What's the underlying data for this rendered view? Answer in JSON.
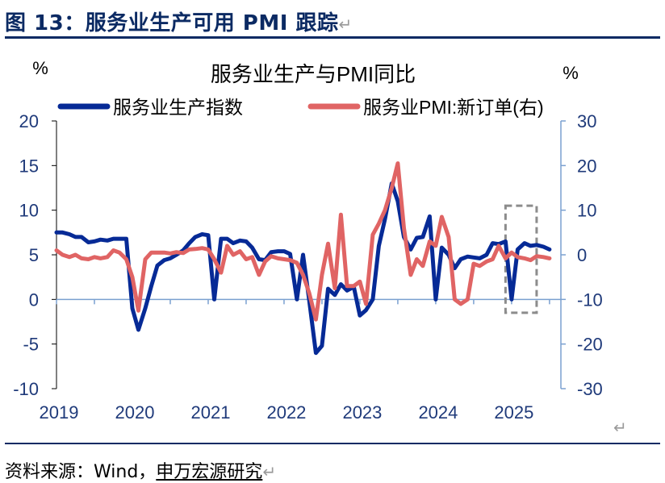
{
  "header": {
    "title": "图 13：服务业生产可用 PMI 跟踪",
    "return_mark": "↵"
  },
  "footer": {
    "source_prefix": "资料来源：Wind，",
    "source_brand": "申万宏源研究",
    "return_mark": "↵",
    "corner_mark": "↵"
  },
  "colors": {
    "series1": "#062a96",
    "series2": "#e06464",
    "axis_right": "#7aa0d0",
    "highlight_box": "#8c8c8c"
  },
  "chart_data": {
    "type": "line",
    "title": "服务业生产与PMI同比",
    "y_left_label": "%",
    "y_right_label": "%",
    "y_left_lim": [
      -10,
      20
    ],
    "y_right_lim": [
      -30,
      30
    ],
    "y_left_ticks": [
      "20",
      "15",
      "10",
      "5",
      "0",
      "-5",
      "-10"
    ],
    "y_right_ticks": [
      "30",
      "20",
      "10",
      "0",
      "-10",
      "-20",
      "-30"
    ],
    "x_tick_labels": [
      "2019",
      "2020",
      "2021",
      "2022",
      "2023",
      "2024",
      "2025"
    ],
    "grid": false,
    "legend_position": "top",
    "highlight": {
      "x_from": 2024.92,
      "x_to": 2025.33,
      "y_left_from": -1.5,
      "y_left_to": 10.5
    },
    "series": [
      {
        "name": "服务业生产指数",
        "axis": "left",
        "points": [
          [
            2019.0,
            7.5
          ],
          [
            2019.08,
            7.5
          ],
          [
            2019.17,
            7.3
          ],
          [
            2019.25,
            7.0
          ],
          [
            2019.33,
            7.0
          ],
          [
            2019.42,
            6.4
          ],
          [
            2019.5,
            6.5
          ],
          [
            2019.58,
            6.7
          ],
          [
            2019.67,
            6.6
          ],
          [
            2019.75,
            6.8
          ],
          [
            2019.83,
            6.8
          ],
          [
            2019.92,
            6.8
          ],
          [
            2020.0,
            -1.0
          ],
          [
            2020.08,
            -3.4
          ],
          [
            2020.17,
            -1.0
          ],
          [
            2020.25,
            1.5
          ],
          [
            2020.33,
            3.8
          ],
          [
            2020.42,
            4.4
          ],
          [
            2020.5,
            4.6
          ],
          [
            2020.58,
            5.0
          ],
          [
            2020.67,
            5.5
          ],
          [
            2020.75,
            6.3
          ],
          [
            2020.83,
            7.0
          ],
          [
            2020.92,
            7.3
          ],
          [
            2021.0,
            7.2
          ],
          [
            2021.08,
            0.0
          ],
          [
            2021.17,
            6.8
          ],
          [
            2021.25,
            6.8
          ],
          [
            2021.33,
            6.3
          ],
          [
            2021.42,
            6.6
          ],
          [
            2021.5,
            6.5
          ],
          [
            2021.58,
            5.8
          ],
          [
            2021.67,
            4.5
          ],
          [
            2021.75,
            4.4
          ],
          [
            2021.83,
            5.3
          ],
          [
            2021.92,
            5.4
          ],
          [
            2022.0,
            5.4
          ],
          [
            2022.08,
            5.1
          ],
          [
            2022.17,
            0.0
          ],
          [
            2022.25,
            5.0
          ],
          [
            2022.33,
            0.0
          ],
          [
            2022.42,
            -6.0
          ],
          [
            2022.5,
            -5.2
          ],
          [
            2022.58,
            1.2
          ],
          [
            2022.67,
            0.5
          ],
          [
            2022.75,
            1.7
          ],
          [
            2022.83,
            1.0
          ],
          [
            2022.92,
            1.4
          ],
          [
            2023.0,
            -1.8
          ],
          [
            2023.08,
            -1.2
          ],
          [
            2023.17,
            0.0
          ],
          [
            2023.25,
            6.0
          ],
          [
            2023.33,
            9.0
          ],
          [
            2023.42,
            13.0
          ],
          [
            2023.5,
            11.0
          ],
          [
            2023.58,
            7.0
          ],
          [
            2023.67,
            5.6
          ],
          [
            2023.75,
            6.9
          ],
          [
            2023.83,
            7.0
          ],
          [
            2023.92,
            9.3
          ],
          [
            2024.0,
            0.0
          ],
          [
            2024.08,
            5.8
          ],
          [
            2024.17,
            5.0
          ],
          [
            2024.25,
            3.5
          ],
          [
            2024.33,
            4.5
          ],
          [
            2024.42,
            4.8
          ],
          [
            2024.5,
            4.7
          ],
          [
            2024.58,
            4.6
          ],
          [
            2024.67,
            5.0
          ],
          [
            2024.75,
            6.3
          ],
          [
            2024.83,
            6.2
          ],
          [
            2024.92,
            6.5
          ],
          [
            2025.0,
            0.0
          ],
          [
            2025.08,
            5.6
          ],
          [
            2025.17,
            6.3
          ],
          [
            2025.25,
            6.0
          ],
          [
            2025.33,
            6.1
          ],
          [
            2025.42,
            5.9
          ],
          [
            2025.5,
            5.6
          ]
        ]
      },
      {
        "name": "服务业PMI:新订单(右)",
        "axis": "right",
        "points": [
          [
            2019.0,
            1.0
          ],
          [
            2019.08,
            0.0
          ],
          [
            2019.17,
            -0.5
          ],
          [
            2019.25,
            0.0
          ],
          [
            2019.33,
            -0.8
          ],
          [
            2019.42,
            -1.0
          ],
          [
            2019.5,
            -0.5
          ],
          [
            2019.58,
            -0.8
          ],
          [
            2019.67,
            -0.5
          ],
          [
            2019.75,
            1.0
          ],
          [
            2019.83,
            0.5
          ],
          [
            2019.92,
            -1.0
          ],
          [
            2020.0,
            -5.0
          ],
          [
            2020.08,
            -12.5
          ],
          [
            2020.17,
            -1.0
          ],
          [
            2020.25,
            0.5
          ],
          [
            2020.33,
            0.5
          ],
          [
            2020.42,
            0.5
          ],
          [
            2020.5,
            0.3
          ],
          [
            2020.58,
            0.6
          ],
          [
            2020.67,
            0.4
          ],
          [
            2020.75,
            1.2
          ],
          [
            2020.83,
            1.3
          ],
          [
            2020.92,
            1.5
          ],
          [
            2021.0,
            1.2
          ],
          [
            2021.08,
            -1.0
          ],
          [
            2021.17,
            -4.0
          ],
          [
            2021.25,
            2.0
          ],
          [
            2021.33,
            0.0
          ],
          [
            2021.42,
            0.8
          ],
          [
            2021.5,
            -1.0
          ],
          [
            2021.58,
            -0.5
          ],
          [
            2021.67,
            -4.5
          ],
          [
            2021.75,
            -1.5
          ],
          [
            2021.83,
            -0.3
          ],
          [
            2021.92,
            -0.8
          ],
          [
            2022.0,
            -1.0
          ],
          [
            2022.08,
            -1.2
          ],
          [
            2022.17,
            -1.8
          ],
          [
            2022.25,
            -4.5
          ],
          [
            2022.33,
            -8.5
          ],
          [
            2022.42,
            -14.5
          ],
          [
            2022.5,
            -4.5
          ],
          [
            2022.58,
            2.5
          ],
          [
            2022.67,
            -7.5
          ],
          [
            2022.75,
            9.0
          ],
          [
            2022.83,
            -7.0
          ],
          [
            2022.92,
            -7.0
          ],
          [
            2023.0,
            -6.0
          ],
          [
            2023.08,
            -11.0
          ],
          [
            2023.17,
            4.5
          ],
          [
            2023.25,
            7.0
          ],
          [
            2023.33,
            10.0
          ],
          [
            2023.42,
            15.0
          ],
          [
            2023.5,
            20.5
          ],
          [
            2023.58,
            6.0
          ],
          [
            2023.67,
            -4.5
          ],
          [
            2023.75,
            -1.0
          ],
          [
            2023.83,
            -2.5
          ],
          [
            2023.92,
            3.0
          ],
          [
            2024.0,
            2.0
          ],
          [
            2024.08,
            8.5
          ],
          [
            2024.17,
            4.0
          ],
          [
            2024.25,
            -10.0
          ],
          [
            2024.33,
            -11.0
          ],
          [
            2024.42,
            -10.0
          ],
          [
            2024.5,
            -2.0
          ],
          [
            2024.58,
            -2.5
          ],
          [
            2024.67,
            -1.5
          ],
          [
            2024.75,
            -1.0
          ],
          [
            2024.83,
            2.0
          ],
          [
            2024.92,
            -0.8
          ],
          [
            2025.0,
            0.5
          ],
          [
            2025.08,
            -0.5
          ],
          [
            2025.17,
            -0.8
          ],
          [
            2025.25,
            -1.2
          ],
          [
            2025.33,
            -0.3
          ],
          [
            2025.42,
            -0.5
          ],
          [
            2025.5,
            -0.8
          ]
        ]
      }
    ]
  }
}
